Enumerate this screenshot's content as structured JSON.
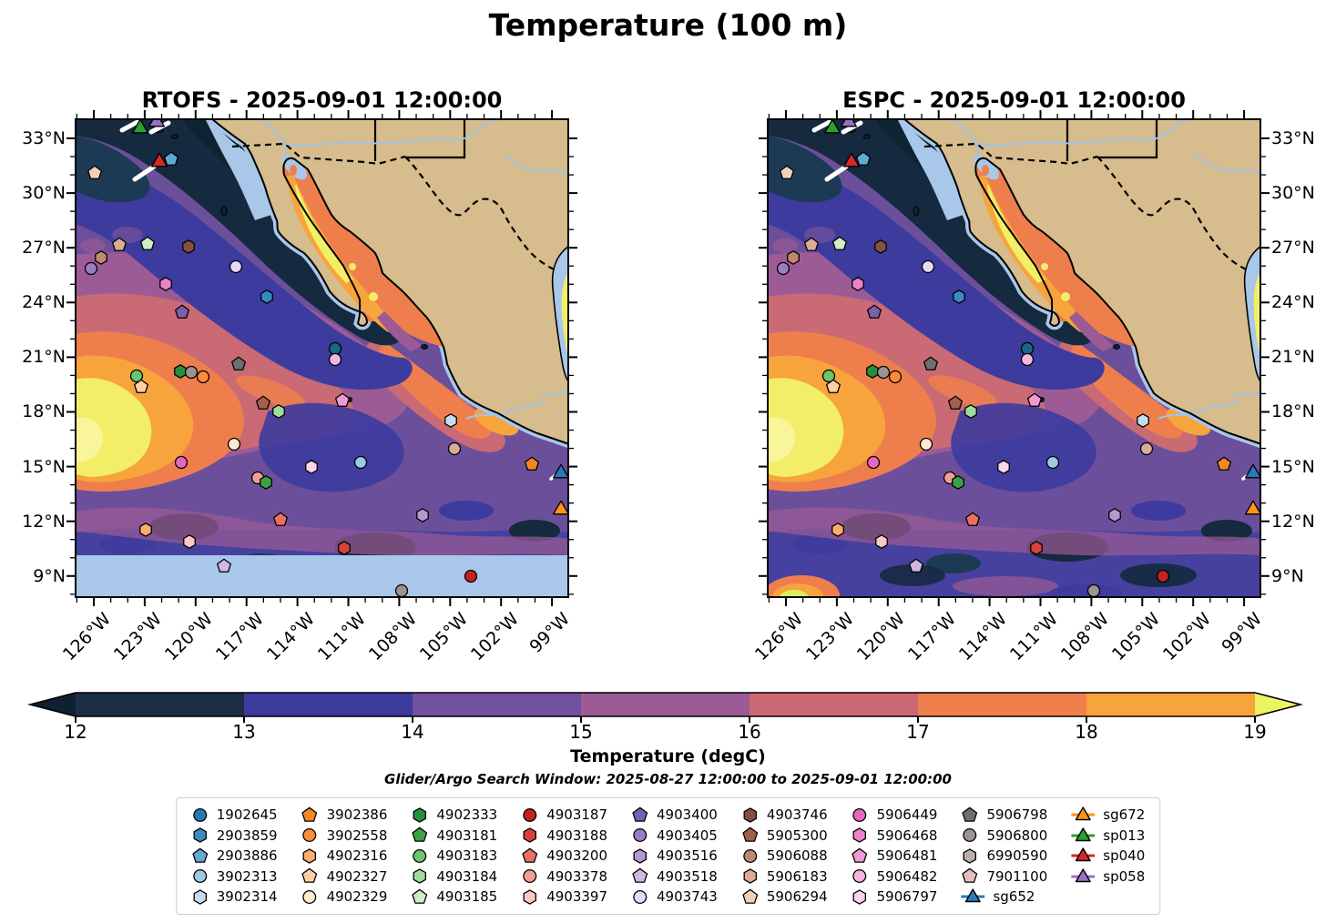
{
  "figure": {
    "title": "Temperature (100 m)"
  },
  "panels": [
    {
      "key": "rtofs",
      "title": "RTOFS - 2025-09-01 12:00:00"
    },
    {
      "key": "espc",
      "title": "ESPC - 2025-09-01 12:00:00"
    }
  ],
  "axes": {
    "lat_labels": [
      "33°N",
      "30°N",
      "27°N",
      "24°N",
      "21°N",
      "18°N",
      "15°N",
      "12°N",
      "9°N"
    ],
    "lon_labels": [
      "126°W",
      "123°W",
      "120°W",
      "117°W",
      "114°W",
      "111°W",
      "108°W",
      "105°W",
      "102°W",
      "99°W"
    ]
  },
  "colorbar": {
    "label": "Temperature (degC)",
    "subtitle": "Glider/Argo Search Window: 2025-08-27 12:00:00 to 2025-09-01 12:00:00",
    "ticks": [
      "12",
      "13",
      "14",
      "15",
      "16",
      "17",
      "18",
      "19"
    ],
    "segment_colors": [
      "#1c2e44",
      "#3d3b9e",
      "#71519e",
      "#9c5b95",
      "#cb6873",
      "#ef7f4c",
      "#f8a43c"
    ],
    "under_color": "#0f2030",
    "over_color": "#edf464"
  },
  "legend": {
    "columns": [
      [
        {
          "id": "1902645",
          "shape": "circle",
          "color": "#2878b5"
        },
        {
          "id": "2903859",
          "shape": "hexagon",
          "color": "#3a8ac0"
        },
        {
          "id": "2903886",
          "shape": "pentagon",
          "color": "#62a8d2"
        },
        {
          "id": "3902313",
          "shape": "circle",
          "color": "#9dcae1"
        },
        {
          "id": "3902314",
          "shape": "hexagon",
          "color": "#c7dbef"
        }
      ],
      [
        {
          "id": "3902386",
          "shape": "pentagon",
          "color": "#f28724"
        },
        {
          "id": "3902558",
          "shape": "circle",
          "color": "#fd8c3c"
        },
        {
          "id": "4902316",
          "shape": "hexagon",
          "color": "#fdad6b"
        },
        {
          "id": "4902327",
          "shape": "pentagon",
          "color": "#fdd0a2"
        },
        {
          "id": "4902329",
          "shape": "circle",
          "color": "#feeace"
        }
      ],
      [
        {
          "id": "4902333",
          "shape": "hexagon",
          "color": "#2a8f3c"
        },
        {
          "id": "4903181",
          "shape": "pentagon",
          "color": "#3da047"
        },
        {
          "id": "4903183",
          "shape": "circle",
          "color": "#6cc56e"
        },
        {
          "id": "4903184",
          "shape": "hexagon",
          "color": "#9edd9b"
        },
        {
          "id": "4903185",
          "shape": "pentagon",
          "color": "#cdeec4"
        }
      ],
      [
        {
          "id": "4903187",
          "shape": "circle",
          "color": "#c32222"
        },
        {
          "id": "4903188",
          "shape": "hexagon",
          "color": "#d9413c"
        },
        {
          "id": "4903200",
          "shape": "pentagon",
          "color": "#ea6f62"
        },
        {
          "id": "4903378",
          "shape": "circle",
          "color": "#f49d96"
        },
        {
          "id": "4903397",
          "shape": "hexagon",
          "color": "#fac9c4"
        }
      ],
      [
        {
          "id": "4903400",
          "shape": "pentagon",
          "color": "#7c5fad"
        },
        {
          "id": "4903405",
          "shape": "circle",
          "color": "#9a7fc0"
        },
        {
          "id": "4903516",
          "shape": "hexagon",
          "color": "#b49bce"
        },
        {
          "id": "4903518",
          "shape": "pentagon",
          "color": "#cdb9e2"
        },
        {
          "id": "4903743",
          "shape": "circle",
          "color": "#e6daf4"
        }
      ],
      [
        {
          "id": "4903746",
          "shape": "hexagon",
          "color": "#854f41"
        },
        {
          "id": "5905300",
          "shape": "pentagon",
          "color": "#a2604d"
        },
        {
          "id": "5906088",
          "shape": "circle",
          "color": "#c08772"
        },
        {
          "id": "5906183",
          "shape": "hexagon",
          "color": "#dcab97"
        },
        {
          "id": "5906294",
          "shape": "pentagon",
          "color": "#f3cfb5"
        }
      ],
      [
        {
          "id": "5906449",
          "shape": "circle",
          "color": "#e667c0"
        },
        {
          "id": "5906468",
          "shape": "hexagon",
          "color": "#ea83ca"
        },
        {
          "id": "5906481",
          "shape": "pentagon",
          "color": "#f09ad5"
        },
        {
          "id": "5906482",
          "shape": "circle",
          "color": "#f6b4e0"
        },
        {
          "id": "5906797",
          "shape": "hexagon",
          "color": "#fbd3ec"
        }
      ],
      [
        {
          "id": "5906798",
          "shape": "pentagon",
          "color": "#6e6e6e"
        },
        {
          "id": "5906800",
          "shape": "circle",
          "color": "#9b9493"
        },
        {
          "id": "6990590",
          "shape": "hexagon",
          "color": "#bcaeaa"
        },
        {
          "id": "7901100",
          "shape": "pentagon",
          "color": "#e3c0bb"
        },
        {
          "id": "sg652",
          "shape": "glider",
          "color": "#2a7ab8"
        }
      ],
      [
        {
          "id": "sg672",
          "shape": "glider",
          "color": "#ff9515"
        },
        {
          "id": "sp013",
          "shape": "glider",
          "color": "#2ca02c"
        },
        {
          "id": "sp040",
          "shape": "glider",
          "color": "#d62728"
        },
        {
          "id": "sp058",
          "shape": "glider",
          "color": "#9a6fc4"
        }
      ]
    ]
  },
  "chart_data": {
    "type": "heatmap",
    "title": "Temperature (100 m)",
    "variable": "Temperature",
    "units": "degC",
    "depth_level": "100 m",
    "panels": [
      "RTOFS - 2025-09-01 12:00:00",
      "ESPC - 2025-09-01 12:00:00"
    ],
    "colorbar_range": [
      12,
      19
    ],
    "colorbar_ticks": [
      12,
      13,
      14,
      15,
      16,
      17,
      18,
      19
    ],
    "colorbar_extend": "both",
    "lat_ticks_deg_n": [
      33,
      30,
      27,
      24,
      21,
      18,
      15,
      12,
      9
    ],
    "lon_ticks_deg_w": [
      126,
      123,
      120,
      117,
      114,
      111,
      108,
      105,
      102,
      99
    ],
    "search_window": "2025-08-27 12:00:00 to 2025-09-01 12:00:00",
    "notes": "RTOFS panel has a flat light-blue no-data band south of ~10N; markers identical on both panels",
    "platform_markers": [
      {
        "id": "sp013",
        "shape": "triangle",
        "color": "#2ca02c",
        "x": 13.3,
        "y": 2.0
      },
      {
        "id": "sp058",
        "shape": "triangle",
        "color": "#9a6fc4",
        "x": 16.6,
        "y": 0.8
      },
      {
        "id": "sp040",
        "shape": "triangle",
        "color": "#d62728",
        "x": 17.1,
        "y": 9.2
      },
      {
        "shape": "pentagon",
        "color": "#62a8d2",
        "x": 19.6,
        "y": 8.6
      },
      {
        "shape": "pentagon",
        "color": "#f3cfb5",
        "x": 4.1,
        "y": 11.4
      },
      {
        "shape": "pentagon",
        "color": "#dcab97",
        "x": 9.0,
        "y": 26.4
      },
      {
        "shape": "pentagon",
        "color": "#cdeec4",
        "x": 14.7,
        "y": 26.2
      },
      {
        "shape": "hexagon",
        "color": "#854f41",
        "x": 23.0,
        "y": 26.8
      },
      {
        "shape": "hexagon",
        "color": "#c08772",
        "x": 5.3,
        "y": 29.0
      },
      {
        "shape": "circle",
        "color": "#9a7fc0",
        "x": 3.3,
        "y": 31.3
      },
      {
        "shape": "circle",
        "color": "#e6daf4",
        "x": 32.6,
        "y": 30.9
      },
      {
        "shape": "hexagon",
        "color": "#ea83ca",
        "x": 18.4,
        "y": 34.5
      },
      {
        "shape": "hexagon",
        "color": "#3a8ac0",
        "x": 38.9,
        "y": 37.2
      },
      {
        "shape": "pentagon",
        "color": "#7c5fad",
        "x": 21.7,
        "y": 40.4
      },
      {
        "shape": "circle",
        "color": "#156a82",
        "x": 52.6,
        "y": 48.0
      },
      {
        "shape": "circle",
        "color": "#f6b4e0",
        "x": 52.7,
        "y": 50.2
      },
      {
        "shape": "pentagon",
        "color": "#6e6e6e",
        "x": 33.1,
        "y": 51.2
      },
      {
        "shape": "circle",
        "color": "#6cc56e",
        "x": 12.5,
        "y": 53.7
      },
      {
        "shape": "hexagon",
        "color": "#2a8f3c",
        "x": 21.4,
        "y": 52.8
      },
      {
        "shape": "circle",
        "color": "#9b9493",
        "x": 23.5,
        "y": 52.9
      },
      {
        "shape": "circle",
        "color": "#fd8c3c",
        "x": 26.0,
        "y": 53.9
      },
      {
        "shape": "pentagon",
        "color": "#fdd0a2",
        "x": 13.4,
        "y": 56.0
      },
      {
        "shape": "pentagon",
        "color": "#a2604d",
        "x": 38.1,
        "y": 59.4
      },
      {
        "shape": "hexagon",
        "color": "#9edd9b",
        "x": 41.3,
        "y": 61.1
      },
      {
        "shape": "pentagon",
        "color": "#f09ad5",
        "x": 54.1,
        "y": 58.8
      },
      {
        "shape": "hexagon",
        "color": "#c7dbef",
        "x": 76.1,
        "y": 63.0
      },
      {
        "shape": "circle",
        "color": "#feeace",
        "x": 32.2,
        "y": 67.9
      },
      {
        "shape": "circle",
        "color": "#e667c0",
        "x": 21.5,
        "y": 71.7
      },
      {
        "shape": "circle",
        "color": "#dcab97",
        "x": 76.8,
        "y": 68.9
      },
      {
        "shape": "circle",
        "color": "#9dcae1",
        "x": 57.8,
        "y": 71.7
      },
      {
        "shape": "hexagon",
        "color": "#fbd3ec",
        "x": 47.9,
        "y": 72.7
      },
      {
        "shape": "circle",
        "color": "#f49d96",
        "x": 37.0,
        "y": 75.0
      },
      {
        "shape": "hexagon",
        "color": "#3da047",
        "x": 38.7,
        "y": 75.9
      },
      {
        "shape": "pentagon",
        "color": "#f28724",
        "x": 92.4,
        "y": 72.1
      },
      {
        "id": "sg652",
        "shape": "triangle",
        "color": "#2a7ab8",
        "x": 98.4,
        "y": 74.0
      },
      {
        "id": "sg672",
        "shape": "triangle",
        "color": "#ff9515",
        "x": 98.4,
        "y": 81.6
      },
      {
        "shape": "hexagon",
        "color": "#b49bce",
        "x": 70.3,
        "y": 82.7
      },
      {
        "shape": "hexagon",
        "color": "#fdad6b",
        "x": 14.4,
        "y": 85.8
      },
      {
        "shape": "hexagon",
        "color": "#fac9c4",
        "x": 23.2,
        "y": 88.2
      },
      {
        "shape": "pentagon",
        "color": "#ea6f62",
        "x": 41.6,
        "y": 83.7
      },
      {
        "shape": "hexagon",
        "color": "#d9413c",
        "x": 54.5,
        "y": 89.6
      },
      {
        "shape": "pentagon",
        "color": "#cdb9e2",
        "x": 30.2,
        "y": 93.4
      },
      {
        "shape": "circle",
        "color": "#c32222",
        "x": 80.1,
        "y": 95.4
      },
      {
        "shape": "circle",
        "color": "#9b9493",
        "x": 66.1,
        "y": 98.5
      }
    ]
  }
}
